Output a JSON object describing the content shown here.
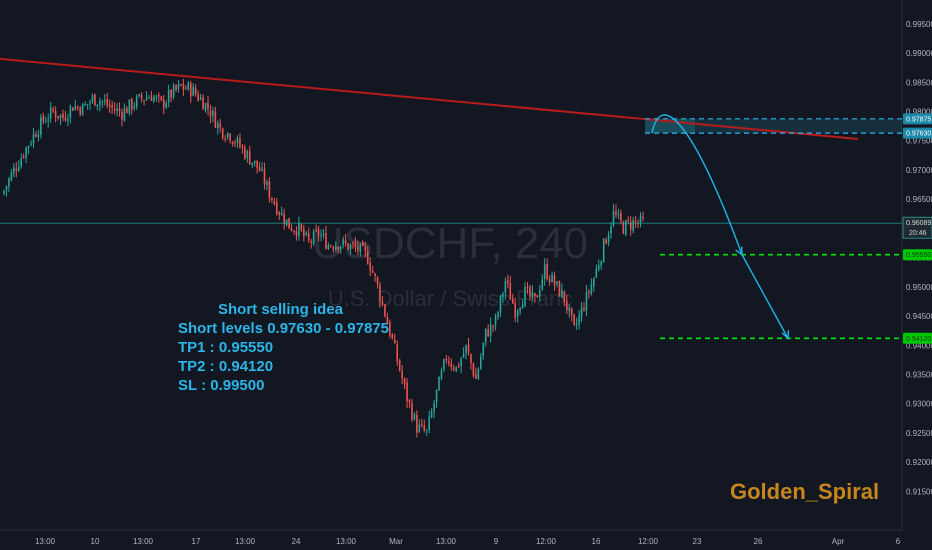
{
  "watermark": {
    "symbol": "USDCHF, 240",
    "name": "U.S. Dollar / Swiss Franc"
  },
  "annotation": {
    "title": "Short selling idea",
    "lines": [
      "Short levels 0.97630 - 0.97875",
      "TP1   : 0.95550",
      "TP2   : 0.94120",
      "SL     : 0.99500"
    ]
  },
  "brand": "Golden_Spiral",
  "colors": {
    "background": "#131722",
    "up": "#26a69a",
    "down": "#ef5350",
    "trendline": "#b71c1c",
    "short_zone": "#1e6f80",
    "short_line": "#29b6f6",
    "target_line": "#00e600",
    "current_line": "#26a69a",
    "arrow": "#1eb7e8"
  },
  "chart_data": {
    "type": "candlestick",
    "symbol": "USDCHF",
    "timeframe": "240",
    "ylim": [
      0.9125,
      0.996
    ],
    "y_ticks": [
      "0.99500",
      "0.99000",
      "0.98500",
      "0.98000",
      "0.97500",
      "0.97000",
      "0.96500",
      "0.96000",
      "0.95500",
      "0.95000",
      "0.94500",
      "0.94000",
      "0.93500",
      "0.93000",
      "0.92500",
      "0.92000",
      "0.91500"
    ],
    "x_ticks": [
      "13:00",
      "10",
      "13:00",
      "17",
      "13:00",
      "24",
      "13:00",
      "Mar",
      "13:00",
      "9",
      "12:00",
      "16",
      "12:00",
      "23",
      "26",
      "Apr",
      "6"
    ],
    "close_path": [
      0.9665,
      0.97,
      0.973,
      0.976,
      0.9785,
      0.98,
      0.979,
      0.981,
      0.9805,
      0.9822,
      0.9818,
      0.9805,
      0.9798,
      0.9812,
      0.9822,
      0.9828,
      0.9812,
      0.983,
      0.9842,
      0.9838,
      0.9822,
      0.98,
      0.977,
      0.976,
      0.974,
      0.972,
      0.97,
      0.966,
      0.963,
      0.9605,
      0.9598,
      0.9575,
      0.9592,
      0.9572,
      0.9575,
      0.957,
      0.9565,
      0.955,
      0.95,
      0.944,
      0.9375,
      0.931,
      0.926,
      0.925,
      0.9318,
      0.938,
      0.936,
      0.9395,
      0.9342,
      0.942,
      0.944,
      0.951,
      0.946,
      0.949,
      0.9475,
      0.953,
      0.9505,
      0.948,
      0.9425,
      0.947,
      0.9515,
      0.957,
      0.9625,
      0.9602,
      0.961,
      0.961
    ],
    "current_price": {
      "value": 0.96089,
      "label": "0.96089",
      "countdown": "20:46"
    },
    "trendline": {
      "start": 0.989,
      "end": 0.9753
    },
    "short_zone": {
      "low": 0.9763,
      "high": 0.97875,
      "low_label": "0.97630",
      "high_label": "0.97875"
    },
    "targets": [
      {
        "name": "TP1",
        "value": 0.9555,
        "label": "0.95550"
      },
      {
        "name": "TP2",
        "value": 0.9412,
        "label": "0.94120"
      }
    ],
    "stop_loss": 0.995,
    "projection": [
      0.9763,
      0.978,
      0.9555,
      0.9412
    ]
  }
}
